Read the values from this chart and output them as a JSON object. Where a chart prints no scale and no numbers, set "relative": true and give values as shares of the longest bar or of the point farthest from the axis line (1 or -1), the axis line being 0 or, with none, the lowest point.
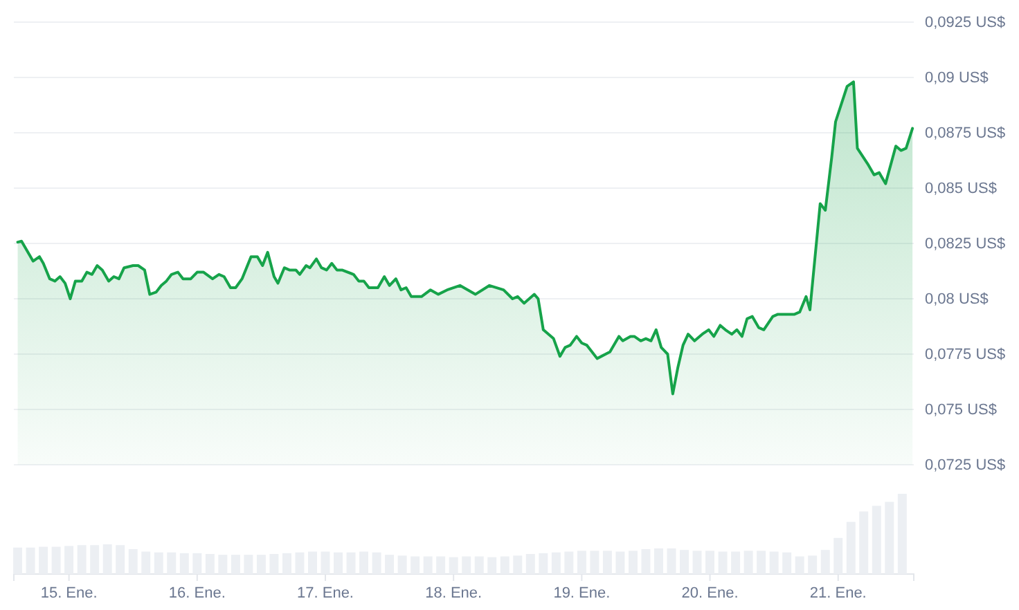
{
  "chart_data": [
    {
      "type": "area",
      "tick_labels": "y",
      "grid": "y",
      "xlim": [
        14.57,
        21.59
      ],
      "ylim": [
        0.0725,
        0.0925
      ],
      "yticks": [
        {
          "value": 0.0725,
          "label": "0,0725 US$"
        },
        {
          "value": 0.075,
          "label": "0,075 US$"
        },
        {
          "value": 0.0775,
          "label": "0,0775 US$"
        },
        {
          "value": 0.08,
          "label": "0,08 US$"
        },
        {
          "value": 0.0825,
          "label": "0,0825 US$"
        },
        {
          "value": 0.085,
          "label": "0,085 US$"
        },
        {
          "value": 0.0875,
          "label": "0,0875 US$"
        },
        {
          "value": 0.09,
          "label": "0,09 US$"
        },
        {
          "value": 0.0925,
          "label": "0,0925 US$"
        }
      ],
      "series": [
        {
          "color": "#16a34a",
          "x": [
            14.6,
            14.63,
            14.72,
            14.77,
            14.8,
            14.85,
            14.89,
            14.93,
            14.97,
            15.01,
            15.05,
            15.1,
            15.14,
            15.18,
            15.22,
            15.26,
            15.31,
            15.35,
            15.39,
            15.43,
            15.5,
            15.54,
            15.59,
            15.63,
            15.68,
            15.72,
            15.76,
            15.8,
            15.85,
            15.89,
            15.95,
            16.0,
            16.05,
            16.12,
            16.17,
            16.21,
            16.26,
            16.3,
            16.35,
            16.42,
            16.47,
            16.51,
            16.55,
            16.6,
            16.63,
            16.68,
            16.72,
            16.77,
            16.8,
            16.85,
            16.88,
            16.93,
            16.97,
            17.01,
            17.05,
            17.09,
            17.13,
            17.22,
            17.26,
            17.3,
            17.34,
            17.41,
            17.46,
            17.5,
            17.55,
            17.59,
            17.63,
            17.67,
            17.75,
            17.82,
            17.88,
            17.95,
            18.05,
            18.17,
            18.28,
            18.39,
            18.46,
            18.5,
            18.55,
            18.63,
            18.66,
            18.7,
            18.78,
            18.83,
            18.87,
            18.91,
            18.96,
            19.0,
            19.04,
            19.12,
            19.22,
            19.29,
            19.32,
            19.38,
            19.41,
            19.46,
            19.5,
            19.54,
            19.58,
            19.62,
            19.67,
            19.71,
            19.75,
            19.79,
            19.83,
            19.88,
            19.94,
            19.99,
            20.03,
            20.08,
            20.12,
            20.17,
            20.21,
            20.25,
            20.29,
            20.33,
            20.38,
            20.42,
            20.49,
            20.53,
            20.6,
            20.66,
            20.7,
            20.75,
            20.78,
            20.86,
            20.9,
            20.95,
            20.98,
            21.07,
            21.12,
            21.15,
            21.23,
            21.28,
            21.32,
            21.37,
            21.45,
            21.49,
            21.53,
            21.58
          ],
          "values": [
            0.08256,
            0.0826,
            0.0817,
            0.0819,
            0.0816,
            0.0809,
            0.0808,
            0.081,
            0.0807,
            0.08,
            0.0808,
            0.0808,
            0.0812,
            0.0811,
            0.0815,
            0.0813,
            0.0808,
            0.081,
            0.0809,
            0.0814,
            0.0815,
            0.0815,
            0.0813,
            0.0802,
            0.0803,
            0.0806,
            0.0808,
            0.0811,
            0.0812,
            0.0809,
            0.0809,
            0.0812,
            0.0812,
            0.0809,
            0.0811,
            0.081,
            0.0805,
            0.0805,
            0.0809,
            0.0819,
            0.0819,
            0.0815,
            0.0821,
            0.081,
            0.0807,
            0.0814,
            0.0813,
            0.0813,
            0.0811,
            0.0815,
            0.0814,
            0.0818,
            0.0814,
            0.0813,
            0.0816,
            0.0813,
            0.0813,
            0.0811,
            0.0808,
            0.0808,
            0.0805,
            0.0805,
            0.081,
            0.0806,
            0.0809,
            0.0804,
            0.0805,
            0.0801,
            0.0801,
            0.0804,
            0.0802,
            0.0804,
            0.0806,
            0.0802,
            0.0806,
            0.0804,
            0.08,
            0.0801,
            0.0798,
            0.0802,
            0.08,
            0.0786,
            0.0782,
            0.0774,
            0.0778,
            0.0779,
            0.0783,
            0.078,
            0.0779,
            0.0773,
            0.0776,
            0.0783,
            0.0781,
            0.0783,
            0.0783,
            0.0781,
            0.0782,
            0.0781,
            0.0786,
            0.0778,
            0.0775,
            0.0757,
            0.0769,
            0.0779,
            0.0784,
            0.0781,
            0.0784,
            0.0786,
            0.0783,
            0.0788,
            0.0786,
            0.0784,
            0.0786,
            0.0783,
            0.0791,
            0.0792,
            0.0787,
            0.0786,
            0.0792,
            0.0793,
            0.0793,
            0.0793,
            0.0794,
            0.0801,
            0.0795,
            0.0843,
            0.084,
            0.0864,
            0.088,
            0.0896,
            0.0898,
            0.0868,
            0.0861,
            0.0856,
            0.0857,
            0.0852,
            0.0869,
            0.0867,
            0.0868,
            0.0877
          ]
        }
      ]
    },
    {
      "type": "bar",
      "relative": true,
      "tick_labels": "x",
      "xlim": [
        14.57,
        21.59
      ],
      "xticks": [
        {
          "value": 15,
          "label": "15. Ene."
        },
        {
          "value": 16,
          "label": "16. Ene."
        },
        {
          "value": 17,
          "label": "17. Ene."
        },
        {
          "value": 18,
          "label": "18. Ene."
        },
        {
          "value": 19,
          "label": "19. Ene."
        },
        {
          "value": 20,
          "label": "20. Ene."
        },
        {
          "value": 21,
          "label": "21. Ene."
        }
      ],
      "series": [
        {
          "color": "#eceff3",
          "x": [
            14.6,
            14.7,
            14.8,
            14.9,
            15.0,
            15.1,
            15.2,
            15.3,
            15.4,
            15.5,
            15.6,
            15.7,
            15.8,
            15.9,
            16.0,
            16.1,
            16.2,
            16.3,
            16.4,
            16.5,
            16.6,
            16.7,
            16.8,
            16.9,
            17.0,
            17.1,
            17.2,
            17.3,
            17.4,
            17.5,
            17.6,
            17.7,
            17.8,
            17.9,
            18.0,
            18.1,
            18.2,
            18.3,
            18.4,
            18.5,
            18.6,
            18.7,
            18.8,
            18.9,
            19.0,
            19.1,
            19.2,
            19.3,
            19.4,
            19.5,
            19.6,
            19.7,
            19.8,
            19.9,
            20.0,
            20.1,
            20.2,
            20.3,
            20.4,
            20.5,
            20.6,
            20.7,
            20.8,
            20.9,
            21.0,
            21.1,
            21.2,
            21.3,
            21.4,
            21.5
          ],
          "values": [
            0.33,
            0.33,
            0.34,
            0.34,
            0.35,
            0.36,
            0.36,
            0.37,
            0.36,
            0.31,
            0.28,
            0.27,
            0.27,
            0.26,
            0.26,
            0.25,
            0.24,
            0.24,
            0.24,
            0.24,
            0.25,
            0.26,
            0.27,
            0.28,
            0.28,
            0.27,
            0.27,
            0.28,
            0.27,
            0.24,
            0.23,
            0.22,
            0.22,
            0.22,
            0.21,
            0.22,
            0.22,
            0.21,
            0.22,
            0.23,
            0.25,
            0.26,
            0.27,
            0.28,
            0.29,
            0.29,
            0.29,
            0.28,
            0.29,
            0.31,
            0.32,
            0.32,
            0.3,
            0.29,
            0.29,
            0.28,
            0.28,
            0.29,
            0.29,
            0.28,
            0.27,
            0.22,
            0.23,
            0.3,
            0.45,
            0.65,
            0.78,
            0.85,
            0.9,
            1.0
          ]
        }
      ]
    }
  ]
}
